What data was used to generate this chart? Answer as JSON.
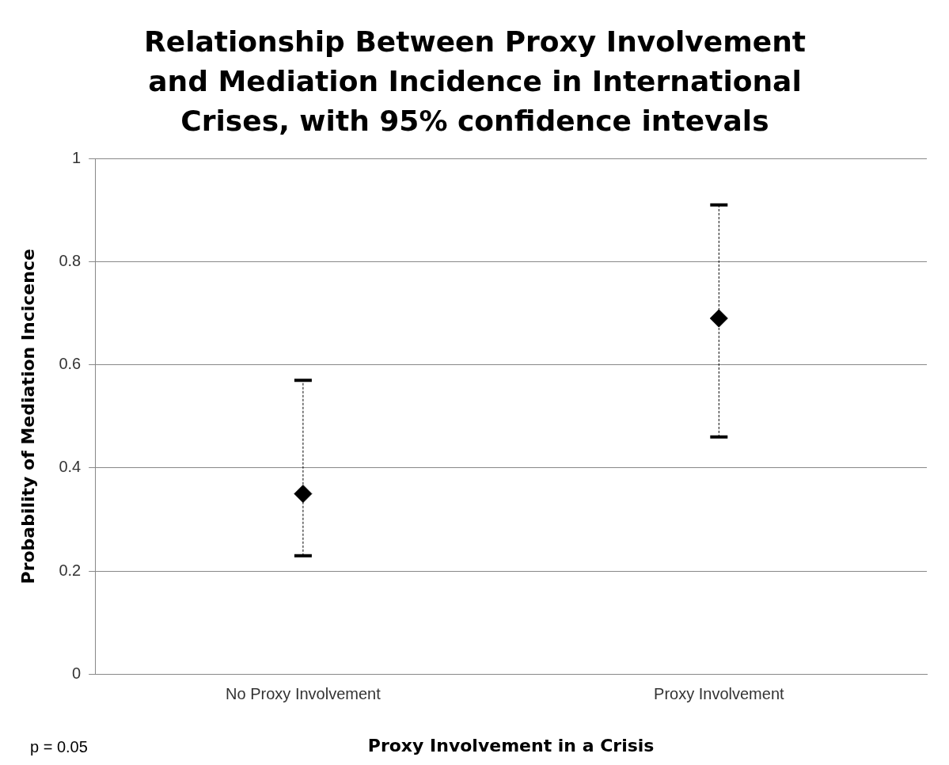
{
  "chart_data": {
    "type": "scatter",
    "title": "Relationship Between Proxy Involvement and Mediation Incidence in International Crises, with 95% confidence intevals",
    "xlabel": "Proxy Involvement in a Crisis",
    "ylabel": "Probability of Mediation Incicence",
    "categories": [
      "No Proxy Involvement",
      "Proxy Involvement"
    ],
    "series": [
      {
        "color": "#000000",
        "values": [
          0.35,
          0.69
        ],
        "errors": [
          [
            0.23,
            0.57
          ],
          [
            0.46,
            0.91
          ]
        ]
      }
    ],
    "ylim": [
      0,
      1
    ],
    "yticks": [
      0,
      0.2,
      0.4,
      0.6,
      0.8,
      1
    ],
    "grid": "y",
    "legend": false,
    "marker": "diamond",
    "annotations": [
      "p = 0.05"
    ]
  }
}
